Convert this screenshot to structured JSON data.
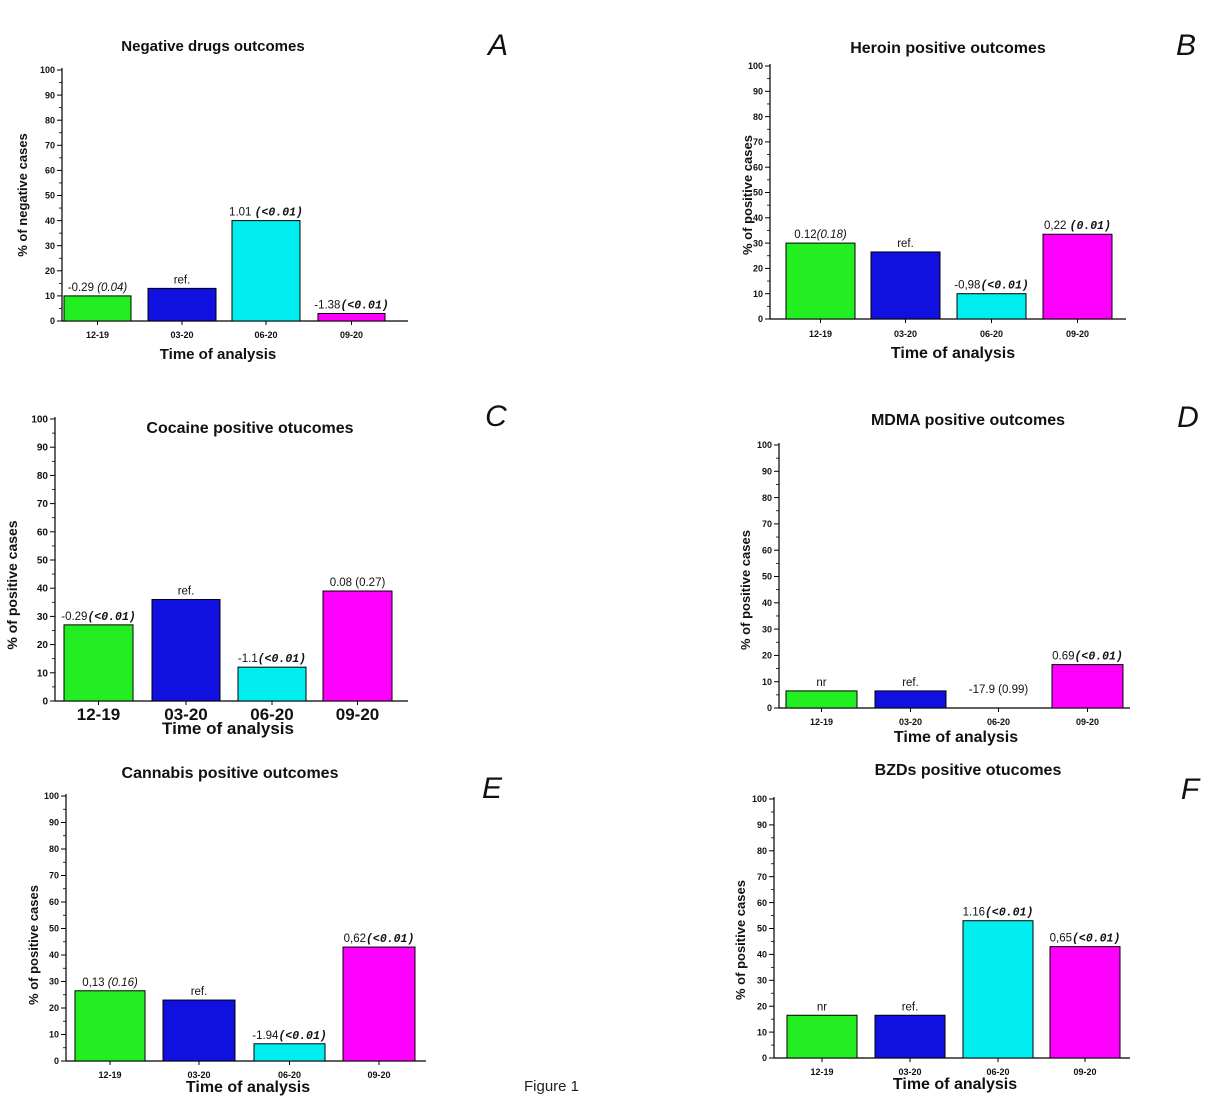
{
  "figure_caption": "Figure 1",
  "colors": [
    "#22ee22",
    "#1010e0",
    "#00eef0",
    "#ff00ff"
  ],
  "chart_data": [
    {
      "panel": "A",
      "type": "bar",
      "title": "Negative drugs outcomes",
      "xlabel": "Time of analysis",
      "ylabel": "% of negative cases",
      "ylim": [
        0,
        100
      ],
      "yticks": [
        0,
        10,
        20,
        30,
        40,
        50,
        60,
        70,
        80,
        90,
        100
      ],
      "categories": [
        "12-19",
        "03-20",
        "06-20",
        "09-20"
      ],
      "values": [
        10,
        13,
        40,
        3
      ],
      "labels": [
        {
          "main": "-0.29 ",
          "p": "(0.04)",
          "bold": false
        },
        {
          "main": "ref.",
          "p": "",
          "bold": false
        },
        {
          "main": "1.01 ",
          "p": "(<0.01)",
          "bold": true
        },
        {
          "main": "-1.38",
          "p": "(<0.01)",
          "bold": true
        }
      ]
    },
    {
      "panel": "B",
      "type": "bar",
      "title": "Heroin positive outcomes",
      "xlabel": "Time of analysis",
      "ylabel": "% of positive cases",
      "ylim": [
        0,
        100
      ],
      "yticks": [
        0,
        10,
        20,
        30,
        40,
        50,
        60,
        70,
        80,
        90,
        100
      ],
      "categories": [
        "12-19",
        "03-20",
        "06-20",
        "09-20"
      ],
      "values": [
        30,
        26.5,
        10,
        33.5
      ],
      "labels": [
        {
          "main": "0.12",
          "p": "(0.18)",
          "bold": false
        },
        {
          "main": "ref.",
          "p": "",
          "bold": false
        },
        {
          "main": "-0,98",
          "p": "(<0.01)",
          "bold": true
        },
        {
          "main": "0,22 ",
          "p": "(0.01)",
          "bold": true
        }
      ]
    },
    {
      "panel": "C",
      "type": "bar",
      "title": "Cocaine positive otucomes",
      "xlabel": "Time of analysis",
      "ylabel": "% of positive cases",
      "ylim": [
        0,
        100
      ],
      "yticks": [
        0,
        10,
        20,
        30,
        40,
        50,
        60,
        70,
        80,
        90,
        100
      ],
      "categories": [
        "12-19",
        "03-20",
        "06-20",
        "09-20"
      ],
      "values": [
        27,
        36,
        12,
        39
      ],
      "labels": [
        {
          "main": "-0.29",
          "p": "(<0.01)",
          "bold": true
        },
        {
          "main": "ref.",
          "p": "",
          "bold": false
        },
        {
          "main": "-1.1",
          "p": "(<0.01)",
          "bold": true
        },
        {
          "main": "0.08 (0.27)",
          "p": "",
          "bold": false
        }
      ]
    },
    {
      "panel": "D",
      "type": "bar",
      "title": "MDMA positive outcomes",
      "xlabel": "Time of analysis",
      "ylabel": "% of positive cases",
      "ylim": [
        0,
        100
      ],
      "yticks": [
        0,
        10,
        20,
        30,
        40,
        50,
        60,
        70,
        80,
        90,
        100
      ],
      "categories": [
        "12-19",
        "03-20",
        "06-20",
        "09-20"
      ],
      "values": [
        6.5,
        6.5,
        0,
        16.5
      ],
      "labels": [
        {
          "main": "nr",
          "p": "",
          "bold": false
        },
        {
          "main": "ref.",
          "p": "",
          "bold": false
        },
        {
          "main": "-17.9 (0.99)",
          "p": "",
          "bold": false
        },
        {
          "main": "0.69",
          "p": "(<0.01)",
          "bold": true
        }
      ]
    },
    {
      "panel": "E",
      "type": "bar",
      "title": "Cannabis positive outcomes",
      "xlabel": "Time of analysis",
      "ylabel": "% of positive cases",
      "ylim": [
        0,
        100
      ],
      "yticks": [
        0,
        10,
        20,
        30,
        40,
        50,
        60,
        70,
        80,
        90,
        100
      ],
      "categories": [
        "12-19",
        "03-20",
        "06-20",
        "09-20"
      ],
      "values": [
        26.5,
        23,
        6.5,
        43
      ],
      "labels": [
        {
          "main": "0,13 ",
          "p": "(0.16)",
          "bold": false
        },
        {
          "main": "ref.",
          "p": "",
          "bold": false
        },
        {
          "main": "-1.94",
          "p": "(<0.01)",
          "bold": true
        },
        {
          "main": "0,62",
          "p": "(<0.01)",
          "bold": true
        }
      ]
    },
    {
      "panel": "F",
      "type": "bar",
      "title": "BZDs positive otucomes",
      "xlabel": "Time of analysis",
      "ylabel": "% of positive cases",
      "ylim": [
        0,
        100
      ],
      "yticks": [
        0,
        10,
        20,
        30,
        40,
        50,
        60,
        70,
        80,
        90,
        100
      ],
      "categories": [
        "12-19",
        "03-20",
        "06-20",
        "09-20"
      ],
      "values": [
        16.5,
        16.5,
        53,
        43
      ],
      "labels": [
        {
          "main": "nr",
          "p": "",
          "bold": false
        },
        {
          "main": "ref.",
          "p": "",
          "bold": false
        },
        {
          "main": "1.16",
          "p": "(<0.01)",
          "bold": true
        },
        {
          "main": "0,65",
          "p": "(<0.01)",
          "bold": true
        }
      ]
    }
  ]
}
